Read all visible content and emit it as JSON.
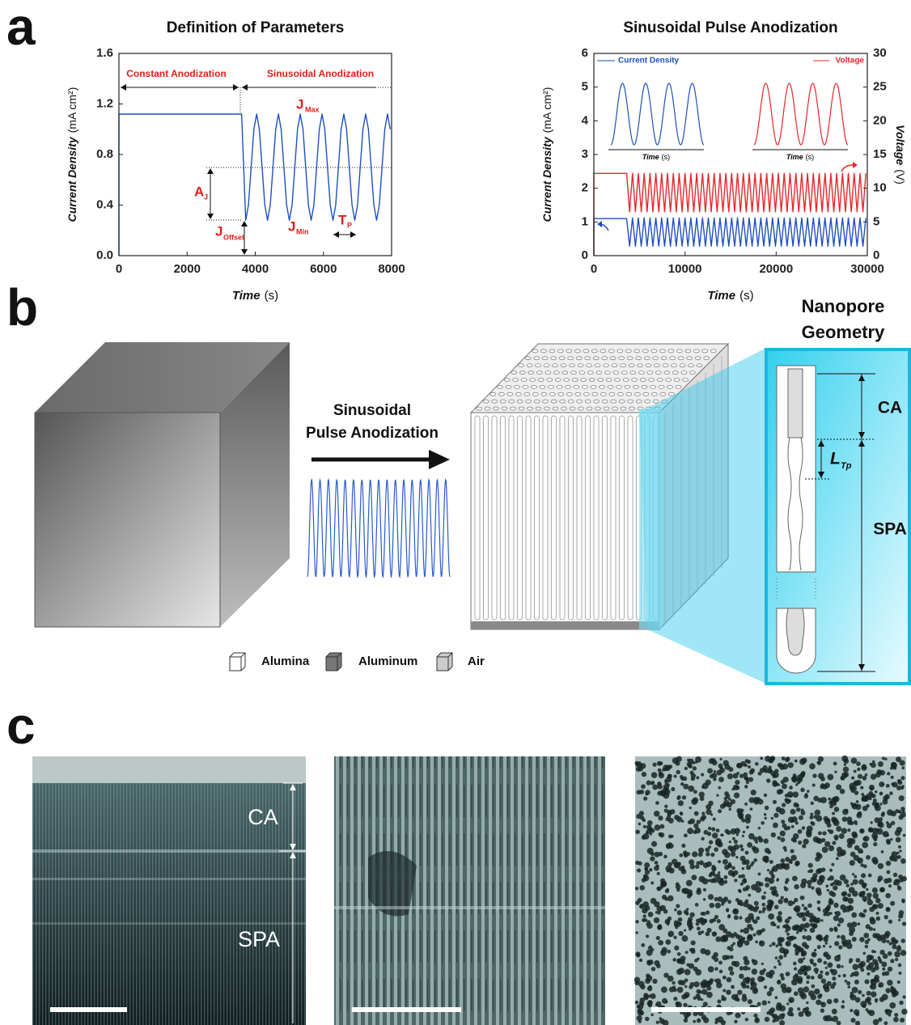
{
  "panel_labels": [
    "a",
    "b",
    "c"
  ],
  "chart_data": [
    {
      "type": "line",
      "title": "Definition of Parameters",
      "x_label": {
        "text": "Time",
        "unit": "(s)"
      },
      "y_label": {
        "text": "Current Density",
        "unit": "(mA cm²)"
      },
      "color": "#1f4fbf",
      "x": [
        0,
        0,
        3600,
        3720,
        3800,
        3880,
        3960,
        4040,
        4120,
        4200,
        4280,
        4360,
        4440,
        4520,
        4600,
        4680,
        4760,
        4840,
        4920,
        5000,
        5080,
        5160,
        5240,
        5320,
        5400,
        5480,
        5560,
        5640,
        5720,
        5800,
        5880,
        5960,
        6040,
        6120,
        6200,
        6280,
        6360,
        6440,
        6520,
        6600,
        6680,
        6760,
        6840,
        6920,
        7000,
        7080,
        7160,
        7240,
        7320,
        7400,
        7480,
        7560,
        7640,
        7720,
        7800,
        7880,
        7960
      ],
      "values": [
        0,
        1.12,
        1.12,
        0.28,
        0.4,
        0.7,
        1.0,
        1.12,
        1.0,
        0.7,
        0.4,
        0.28,
        0.4,
        0.7,
        1.0,
        1.12,
        1.0,
        0.7,
        0.4,
        0.28,
        0.4,
        0.7,
        1.0,
        1.12,
        1.0,
        0.7,
        0.4,
        0.28,
        0.4,
        0.7,
        1.0,
        1.12,
        1.0,
        0.7,
        0.4,
        0.28,
        0.4,
        0.7,
        1.0,
        1.12,
        1.0,
        0.7,
        0.4,
        0.28,
        0.4,
        0.7,
        1.0,
        1.12,
        1.0,
        0.7,
        0.4,
        0.28,
        0.4,
        0.7,
        1.0,
        1.12,
        1.0
      ],
      "xlim": [
        0,
        8000
      ],
      "xticks": [
        0,
        2000,
        4000,
        6000,
        8000
      ],
      "ylim": [
        0,
        1.6
      ],
      "yticks": [
        {
          "value": 0,
          "label": "0.0"
        },
        0.4,
        0.8,
        1.2,
        1.6
      ],
      "annotations": {
        "constant": "Constant Anodization",
        "sinusoidal": "Sinusoidal Anodization",
        "j_max": {
          "text": "J",
          "sub": "Max"
        },
        "a_j": {
          "text": "A",
          "sub": "J"
        },
        "j_offset": {
          "text": "J",
          "sub": "Offset"
        },
        "j_min": {
          "text": "J",
          "sub": "Min"
        },
        "t_p": {
          "text": "T",
          "sub": "P"
        }
      }
    },
    {
      "type": "line",
      "title": "Sinusoidal Pulse Anodization",
      "x_label": {
        "text": "Time",
        "unit": "(s)"
      },
      "y_label": {
        "text": "Current Density",
        "unit": "(mA cm²)"
      },
      "y2_label": {
        "text": "Voltage",
        "unit": "(V)"
      },
      "inset_x_label": {
        "text": "Time",
        "unit": "(s)"
      },
      "x": [
        0,
        0,
        3600,
        3920,
        4240,
        4560,
        4880,
        5200,
        5520,
        5840,
        6160,
        6480,
        6800,
        7120,
        7440,
        7760,
        8080,
        8400,
        8720,
        9040,
        9360,
        9680,
        10000,
        10320,
        10640,
        10960,
        11280,
        11600,
        11920,
        12240,
        12560,
        12880,
        13200,
        13520,
        13840,
        14160,
        14480,
        14800,
        15120,
        15440,
        15760,
        16080,
        16400,
        16720,
        17040,
        17360,
        17680,
        18000,
        18320,
        18640,
        18960,
        19280,
        19600,
        19920,
        20240,
        20560,
        20880,
        21200,
        21520,
        21840,
        22160,
        22480,
        22800,
        23120,
        23440,
        23760,
        24080,
        24400,
        24720,
        25040,
        25360,
        25680,
        26000,
        26320,
        26640,
        26960,
        27280,
        27600,
        27920,
        28240,
        28560,
        28880,
        29200,
        29520,
        29840
      ],
      "series": [
        {
          "name": "Current Density",
          "color": "#1f4fbf",
          "values": [
            0,
            1.1,
            1.1,
            0.28,
            1.12,
            0.28,
            1.12,
            0.28,
            1.12,
            0.28,
            1.12,
            0.28,
            1.12,
            0.28,
            1.12,
            0.28,
            1.12,
            0.28,
            1.12,
            0.28,
            1.12,
            0.28,
            1.12,
            0.28,
            1.12,
            0.28,
            1.12,
            0.28,
            1.12,
            0.28,
            1.12,
            0.28,
            1.12,
            0.28,
            1.12,
            0.28,
            1.12,
            0.28,
            1.12,
            0.28,
            1.12,
            0.28,
            1.12,
            0.28,
            1.12,
            0.28,
            1.12,
            0.28,
            1.12,
            0.28,
            1.12,
            0.28,
            1.12,
            0.28,
            1.12,
            0.28,
            1.12,
            0.28,
            1.12,
            0.28,
            1.12,
            0.28,
            1.12,
            0.28,
            1.12,
            0.28,
            1.12,
            0.28,
            1.12,
            0.28,
            1.12,
            0.28,
            1.12,
            0.28,
            1.12,
            0.28,
            1.12,
            0.28,
            1.12,
            0.28,
            1.12,
            0.28,
            1.12,
            0.28,
            1.12
          ]
        },
        {
          "name": "Voltage",
          "color": "#e8262a",
          "axis": "y2",
          "values": [
            0,
            12.2,
            12.2,
            6.5,
            12.2,
            6.5,
            12.2,
            6.5,
            12.2,
            6.5,
            12.2,
            6.5,
            12.2,
            6.5,
            12.2,
            6.5,
            12.2,
            6.5,
            12.2,
            6.5,
            12.2,
            6.5,
            12.2,
            6.5,
            12.2,
            6.5,
            12.2,
            6.5,
            12.2,
            6.5,
            12.2,
            6.5,
            12.2,
            6.5,
            12.2,
            6.5,
            12.2,
            6.5,
            12.2,
            6.5,
            12.2,
            6.5,
            12.2,
            6.5,
            12.2,
            6.5,
            12.2,
            6.5,
            12.2,
            6.5,
            12.2,
            6.5,
            12.2,
            6.5,
            12.2,
            6.5,
            12.2,
            6.5,
            12.2,
            6.5,
            12.2,
            6.5,
            12.2,
            6.5,
            12.2,
            6.5,
            12.2,
            6.5,
            12.2,
            6.5,
            12.2,
            6.5,
            12.2,
            6.5,
            12.2,
            6.5,
            12.2,
            6.5,
            12.2,
            6.5,
            12.2,
            6.5,
            12.2,
            6.5,
            12.2
          ]
        }
      ],
      "xlim": [
        0,
        30000
      ],
      "xticks": [
        0,
        10000,
        20000,
        30000
      ],
      "ylim": [
        0,
        6
      ],
      "yticks": [
        0,
        1,
        2,
        3,
        4,
        5,
        6
      ],
      "y2lim": [
        0,
        30
      ],
      "y2ticks": [
        0,
        5,
        10,
        15,
        20,
        25,
        30
      ]
    }
  ],
  "schematic": {
    "process_label": [
      "Sinusoidal",
      "Pulse Anodization"
    ],
    "geometry_title": [
      "Nanopore",
      "Geometry"
    ],
    "segments": {
      "ca": "CA",
      "spa": "SPA"
    },
    "period_label": {
      "text": "L",
      "sub": "Tp"
    },
    "legend": [
      "Alumina",
      "Aluminum",
      "Air"
    ]
  },
  "micrographs": {
    "labels": [
      "CA",
      "SPA"
    ]
  }
}
